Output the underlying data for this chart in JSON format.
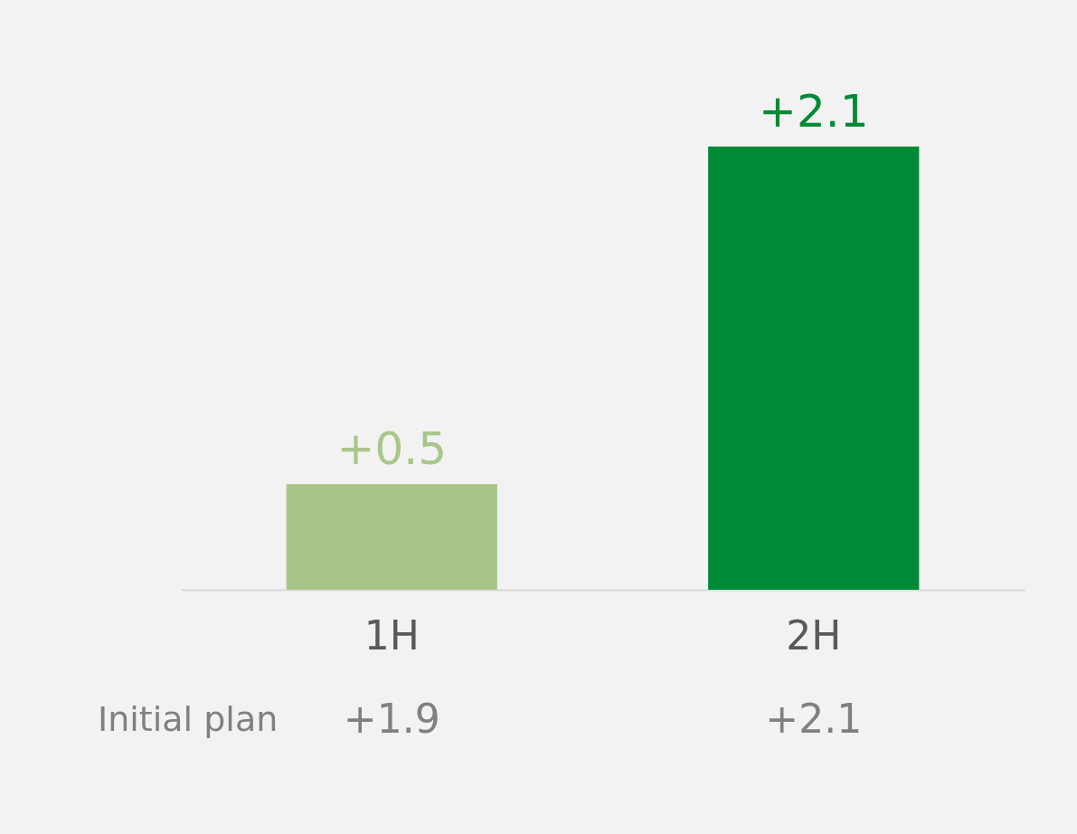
{
  "chart_data": {
    "type": "bar",
    "categories": [
      "1H",
      "2H"
    ],
    "values": [
      0.5,
      2.1
    ],
    "colors": [
      "#a9c68a",
      "#008a37"
    ],
    "value_labels": [
      "+0.5",
      "+2.1"
    ],
    "annotations": [
      "Initial plan",
      "+1.9",
      "+2.1"
    ],
    "grid": false
  }
}
